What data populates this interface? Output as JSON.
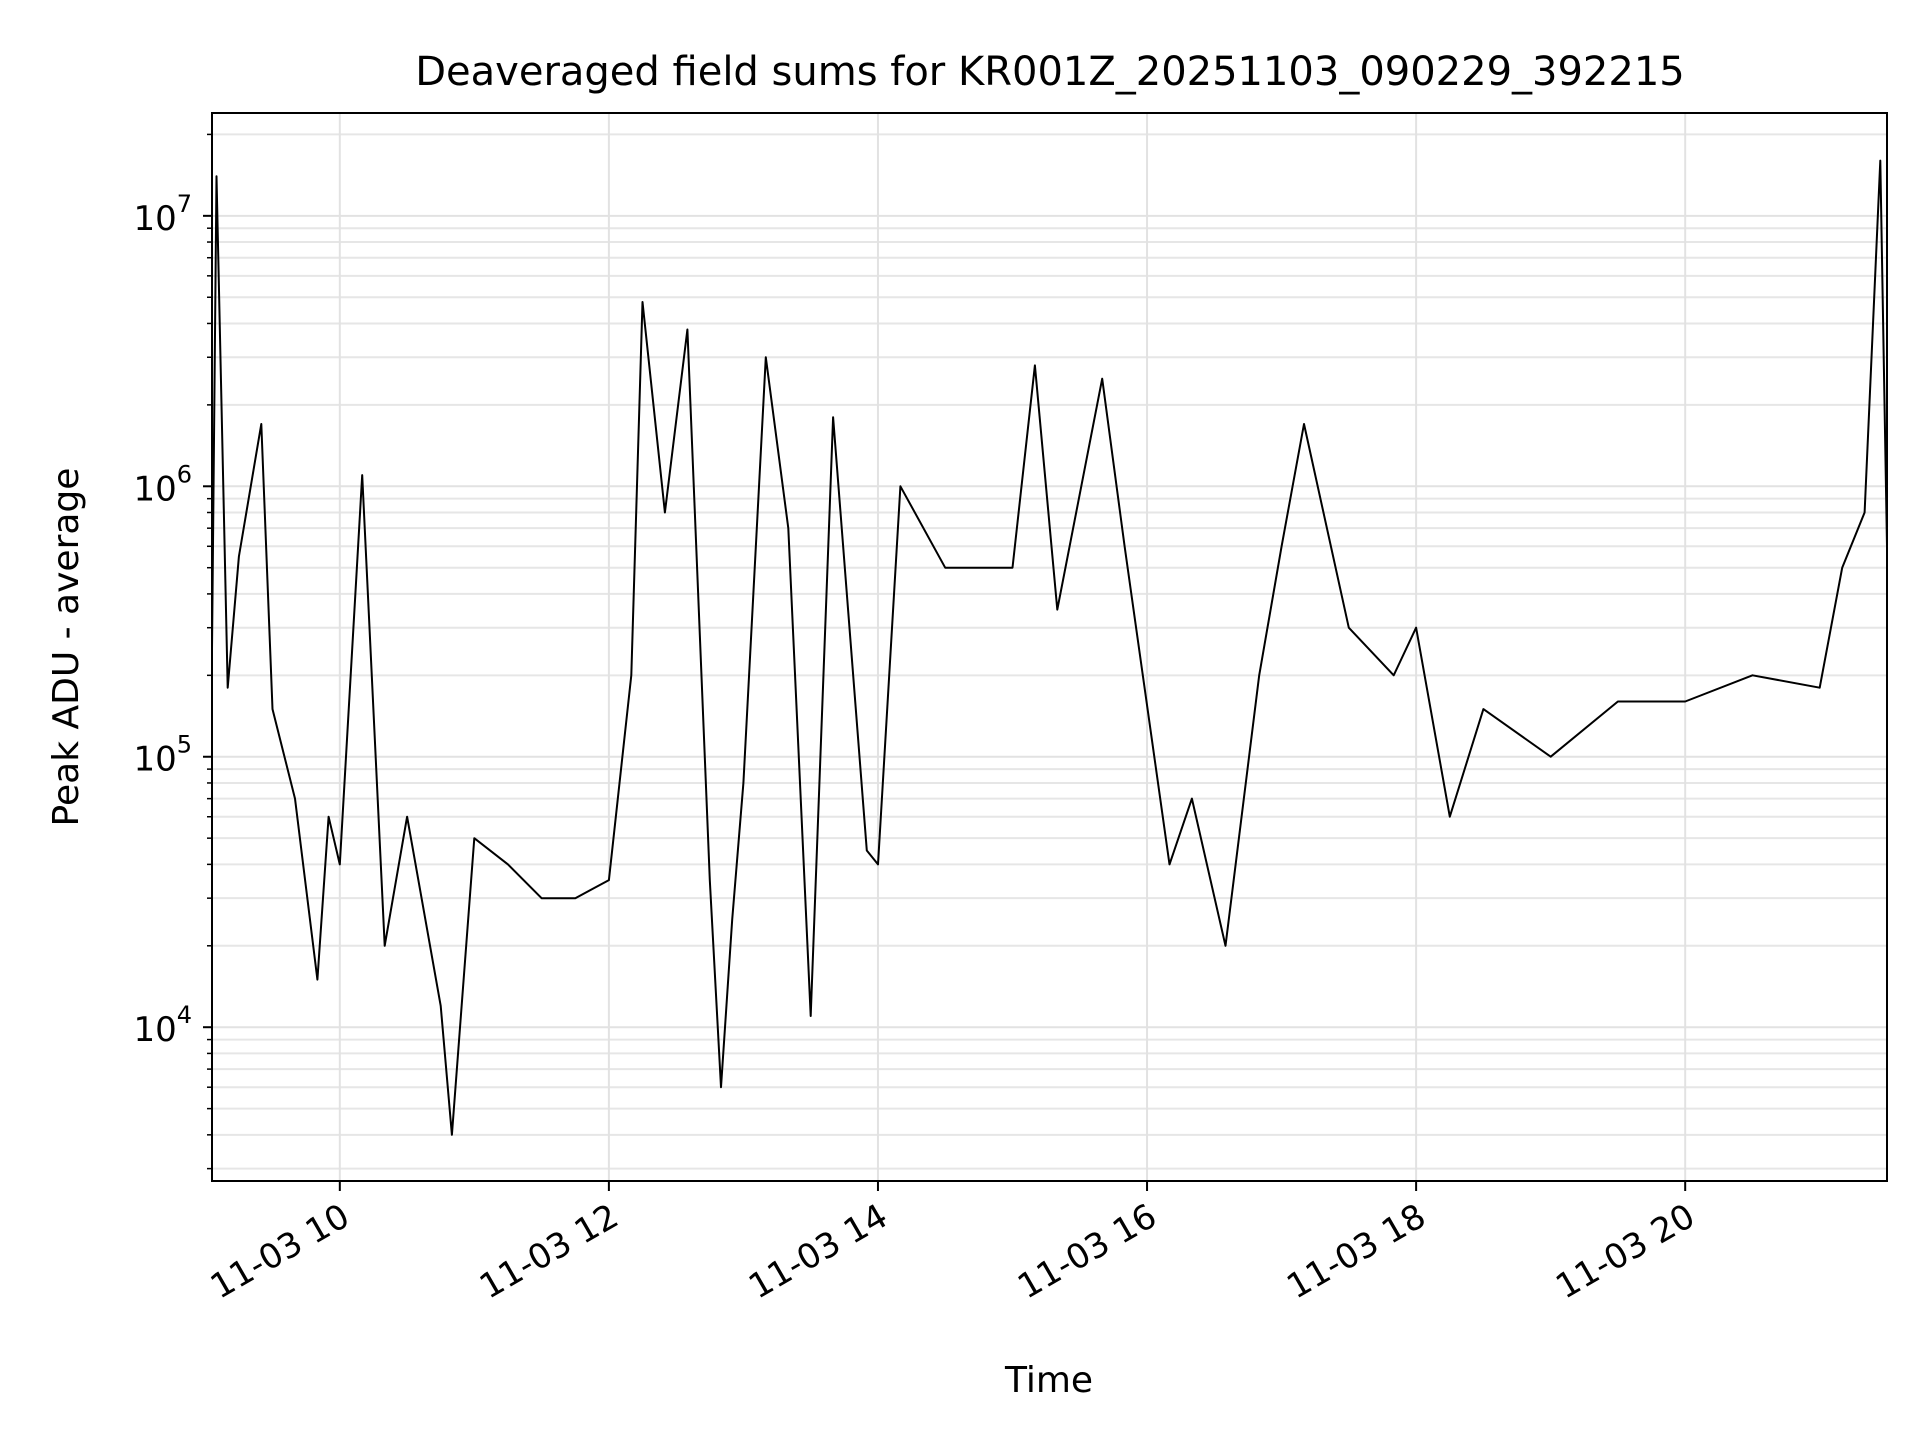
{
  "chart_data": {
    "type": "line",
    "title": "Deaveraged field sums for KR001Z_20251103_090229_392215",
    "xlabel": "Time",
    "ylabel": "Peak ADU - average",
    "y_scale": "log",
    "ylim": [
      2700,
      24000000
    ],
    "xlim": [
      "2025-11-03 09:03",
      "2025-11-03 21:30"
    ],
    "grid": true,
    "line_color": "#000000",
    "x_ticks": [
      {
        "value": "2025-11-03 10:00",
        "label": "11-03 10"
      },
      {
        "value": "2025-11-03 12:00",
        "label": "11-03 12"
      },
      {
        "value": "2025-11-03 14:00",
        "label": "11-03 14"
      },
      {
        "value": "2025-11-03 16:00",
        "label": "11-03 16"
      },
      {
        "value": "2025-11-03 18:00",
        "label": "11-03 18"
      },
      {
        "value": "2025-11-03 20:00",
        "label": "11-03 20"
      }
    ],
    "y_ticks": [
      {
        "value": 10000,
        "base": "10",
        "exp": "4"
      },
      {
        "value": 100000,
        "base": "10",
        "exp": "5"
      },
      {
        "value": 1000000,
        "base": "10",
        "exp": "6"
      },
      {
        "value": 10000000,
        "base": "10",
        "exp": "7"
      }
    ],
    "series": [
      {
        "values": [
          [
            "2025-11-03 09:03",
            250000
          ],
          [
            "2025-11-03 09:05",
            14000000
          ],
          [
            "2025-11-03 09:10",
            180000
          ],
          [
            "2025-11-03 09:15",
            550000
          ],
          [
            "2025-11-03 09:25",
            1700000
          ],
          [
            "2025-11-03 09:30",
            150000
          ],
          [
            "2025-11-03 09:40",
            70000
          ],
          [
            "2025-11-03 09:50",
            15000
          ],
          [
            "2025-11-03 09:55",
            60000
          ],
          [
            "2025-11-03 10:00",
            40000
          ],
          [
            "2025-11-03 10:10",
            1100000
          ],
          [
            "2025-11-03 10:20",
            20000
          ],
          [
            "2025-11-03 10:30",
            60000
          ],
          [
            "2025-11-03 10:45",
            12000
          ],
          [
            "2025-11-03 10:50",
            4000
          ],
          [
            "2025-11-03 11:00",
            50000
          ],
          [
            "2025-11-03 11:15",
            40000
          ],
          [
            "2025-11-03 11:30",
            30000
          ],
          [
            "2025-11-03 11:45",
            30000
          ],
          [
            "2025-11-03 12:00",
            35000
          ],
          [
            "2025-11-03 12:10",
            200000
          ],
          [
            "2025-11-03 12:15",
            4800000
          ],
          [
            "2025-11-03 12:25",
            800000
          ],
          [
            "2025-11-03 12:35",
            3800000
          ],
          [
            "2025-11-03 12:45",
            35000
          ],
          [
            "2025-11-03 12:50",
            6000
          ],
          [
            "2025-11-03 12:55",
            25000
          ],
          [
            "2025-11-03 13:00",
            80000
          ],
          [
            "2025-11-03 13:10",
            3000000
          ],
          [
            "2025-11-03 13:20",
            700000
          ],
          [
            "2025-11-03 13:30",
            11000
          ],
          [
            "2025-11-03 13:40",
            1800000
          ],
          [
            "2025-11-03 13:55",
            45000
          ],
          [
            "2025-11-03 14:00",
            40000
          ],
          [
            "2025-11-03 14:10",
            1000000
          ],
          [
            "2025-11-03 14:30",
            500000
          ],
          [
            "2025-11-03 15:00",
            500000
          ],
          [
            "2025-11-03 15:10",
            2800000
          ],
          [
            "2025-11-03 15:20",
            350000
          ],
          [
            "2025-11-03 15:40",
            2500000
          ],
          [
            "2025-11-03 15:50",
            600000
          ],
          [
            "2025-11-03 16:10",
            40000
          ],
          [
            "2025-11-03 16:20",
            70000
          ],
          [
            "2025-11-03 16:35",
            20000
          ],
          [
            "2025-11-03 16:50",
            200000
          ],
          [
            "2025-11-03 17:00",
            600000
          ],
          [
            "2025-11-03 17:10",
            1700000
          ],
          [
            "2025-11-03 17:30",
            300000
          ],
          [
            "2025-11-03 17:50",
            200000
          ],
          [
            "2025-11-03 18:00",
            300000
          ],
          [
            "2025-11-03 18:15",
            60000
          ],
          [
            "2025-11-03 18:30",
            150000
          ],
          [
            "2025-11-03 19:00",
            100000
          ],
          [
            "2025-11-03 19:30",
            160000
          ],
          [
            "2025-11-03 20:00",
            160000
          ],
          [
            "2025-11-03 20:30",
            200000
          ],
          [
            "2025-11-03 21:00",
            180000
          ],
          [
            "2025-11-03 21:10",
            500000
          ],
          [
            "2025-11-03 21:20",
            800000
          ],
          [
            "2025-11-03 21:27",
            16000000
          ],
          [
            "2025-11-03 21:30",
            600000
          ]
        ]
      }
    ]
  }
}
